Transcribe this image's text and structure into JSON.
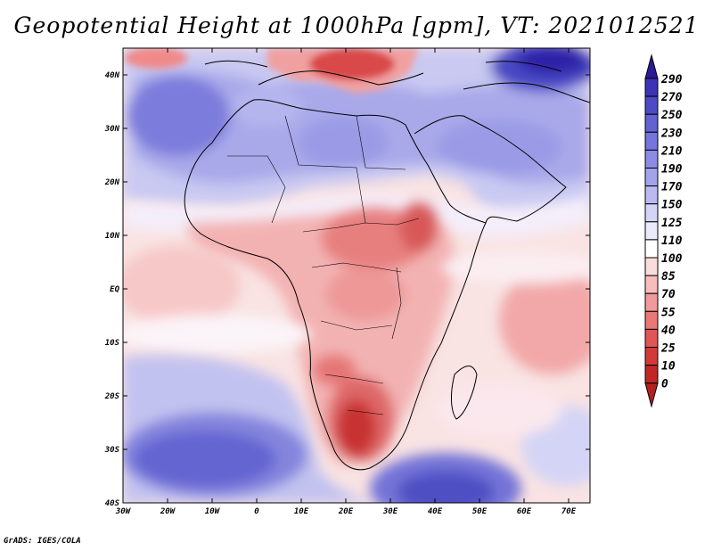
{
  "title": "Geopotential Height at 1000hPa [gpm], VT: 2021012521",
  "credit": "GrADS: IGES/COLA",
  "map": {
    "type": "filled-contour-map",
    "region": "Africa",
    "lat_ticks": [
      "40N",
      "30N",
      "20N",
      "10N",
      "EQ",
      "10S",
      "20S",
      "30S",
      "40S"
    ],
    "lon_ticks": [
      "30W",
      "20W",
      "10W",
      "0",
      "10E",
      "20E",
      "30E",
      "40E",
      "50E",
      "60E",
      "70E"
    ]
  },
  "colorbar": {
    "labels": [
      "290",
      "270",
      "250",
      "230",
      "210",
      "190",
      "170",
      "150",
      "125",
      "110",
      "100",
      "85",
      "70",
      "55",
      "40",
      "25",
      "10",
      "0"
    ],
    "colors": [
      "#2d1fa0",
      "#3c34b4",
      "#4e4ac6",
      "#6262d0",
      "#7575dc",
      "#8c8ce4",
      "#a3a3ea",
      "#babaf0",
      "#d4d4f6",
      "#eaeafa",
      "#ffffff",
      "#fbdcdc",
      "#f7bcbc",
      "#f09a9a",
      "#e97878",
      "#e05555",
      "#d23a3a",
      "#c02828",
      "#a81a1a"
    ],
    "top_color": "#2a1a95",
    "bottom_color": "#b32020"
  }
}
